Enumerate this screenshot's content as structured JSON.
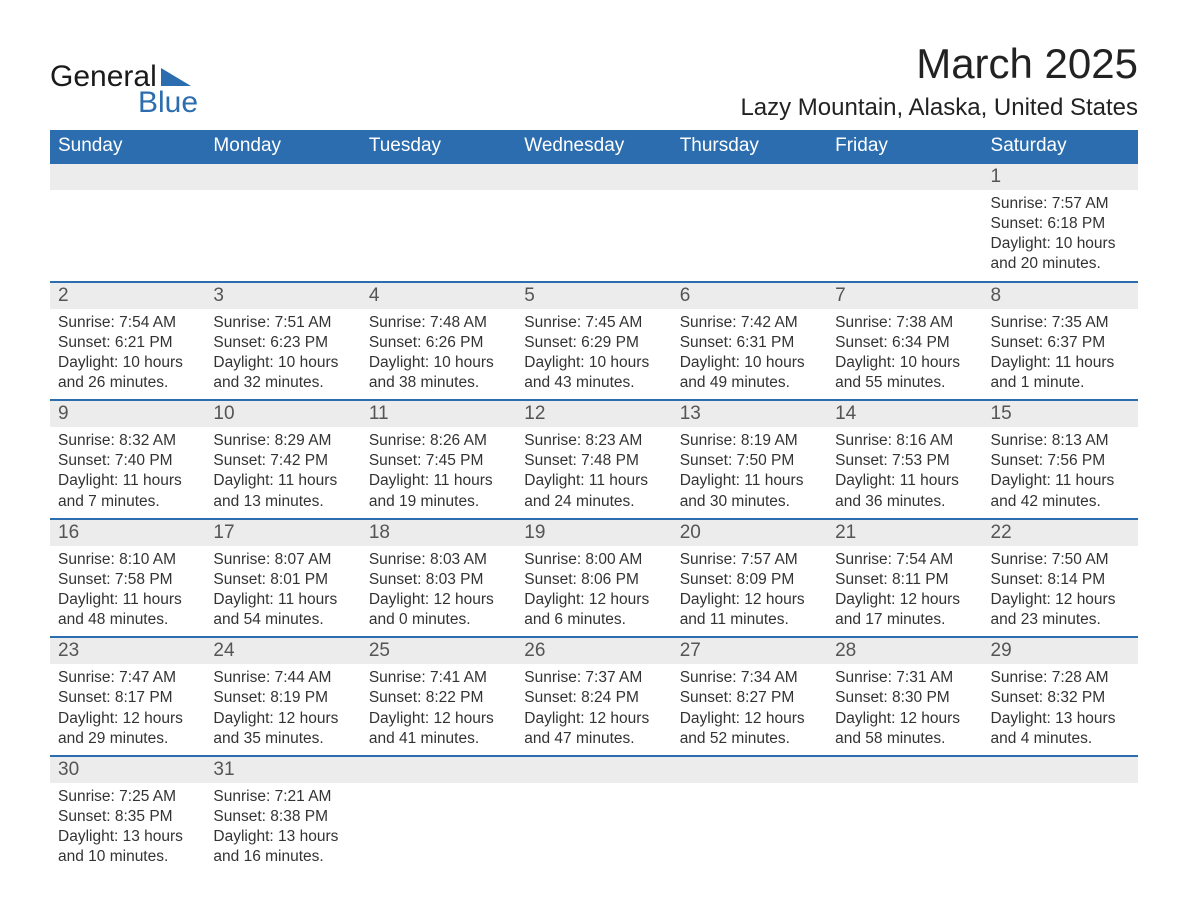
{
  "logo": {
    "word1": "General",
    "word2": "Blue",
    "triangle_color": "#2b6daf"
  },
  "title": "March 2025",
  "location": "Lazy Mountain, Alaska, United States",
  "colors": {
    "header_bg": "#2b6daf",
    "header_text": "#ffffff",
    "daynum_bg": "#ececec",
    "border": "#2b6daf",
    "text": "#333333",
    "background": "#ffffff"
  },
  "typography": {
    "title_fontsize": 42,
    "location_fontsize": 24,
    "header_fontsize": 19,
    "daynum_fontsize": 19,
    "body_fontsize": 15.5
  },
  "layout": {
    "columns": 7,
    "rows": 6,
    "start_day_index": 6
  },
  "headers": [
    "Sunday",
    "Monday",
    "Tuesday",
    "Wednesday",
    "Thursday",
    "Friday",
    "Saturday"
  ],
  "weeks": [
    [
      null,
      null,
      null,
      null,
      null,
      null,
      {
        "n": "1",
        "sr": "Sunrise: 7:57 AM",
        "ss": "Sunset: 6:18 PM",
        "d1": "Daylight: 10 hours",
        "d2": "and 20 minutes."
      }
    ],
    [
      {
        "n": "2",
        "sr": "Sunrise: 7:54 AM",
        "ss": "Sunset: 6:21 PM",
        "d1": "Daylight: 10 hours",
        "d2": "and 26 minutes."
      },
      {
        "n": "3",
        "sr": "Sunrise: 7:51 AM",
        "ss": "Sunset: 6:23 PM",
        "d1": "Daylight: 10 hours",
        "d2": "and 32 minutes."
      },
      {
        "n": "4",
        "sr": "Sunrise: 7:48 AM",
        "ss": "Sunset: 6:26 PM",
        "d1": "Daylight: 10 hours",
        "d2": "and 38 minutes."
      },
      {
        "n": "5",
        "sr": "Sunrise: 7:45 AM",
        "ss": "Sunset: 6:29 PM",
        "d1": "Daylight: 10 hours",
        "d2": "and 43 minutes."
      },
      {
        "n": "6",
        "sr": "Sunrise: 7:42 AM",
        "ss": "Sunset: 6:31 PM",
        "d1": "Daylight: 10 hours",
        "d2": "and 49 minutes."
      },
      {
        "n": "7",
        "sr": "Sunrise: 7:38 AM",
        "ss": "Sunset: 6:34 PM",
        "d1": "Daylight: 10 hours",
        "d2": "and 55 minutes."
      },
      {
        "n": "8",
        "sr": "Sunrise: 7:35 AM",
        "ss": "Sunset: 6:37 PM",
        "d1": "Daylight: 11 hours",
        "d2": "and 1 minute."
      }
    ],
    [
      {
        "n": "9",
        "sr": "Sunrise: 8:32 AM",
        "ss": "Sunset: 7:40 PM",
        "d1": "Daylight: 11 hours",
        "d2": "and 7 minutes."
      },
      {
        "n": "10",
        "sr": "Sunrise: 8:29 AM",
        "ss": "Sunset: 7:42 PM",
        "d1": "Daylight: 11 hours",
        "d2": "and 13 minutes."
      },
      {
        "n": "11",
        "sr": "Sunrise: 8:26 AM",
        "ss": "Sunset: 7:45 PM",
        "d1": "Daylight: 11 hours",
        "d2": "and 19 minutes."
      },
      {
        "n": "12",
        "sr": "Sunrise: 8:23 AM",
        "ss": "Sunset: 7:48 PM",
        "d1": "Daylight: 11 hours",
        "d2": "and 24 minutes."
      },
      {
        "n": "13",
        "sr": "Sunrise: 8:19 AM",
        "ss": "Sunset: 7:50 PM",
        "d1": "Daylight: 11 hours",
        "d2": "and 30 minutes."
      },
      {
        "n": "14",
        "sr": "Sunrise: 8:16 AM",
        "ss": "Sunset: 7:53 PM",
        "d1": "Daylight: 11 hours",
        "d2": "and 36 minutes."
      },
      {
        "n": "15",
        "sr": "Sunrise: 8:13 AM",
        "ss": "Sunset: 7:56 PM",
        "d1": "Daylight: 11 hours",
        "d2": "and 42 minutes."
      }
    ],
    [
      {
        "n": "16",
        "sr": "Sunrise: 8:10 AM",
        "ss": "Sunset: 7:58 PM",
        "d1": "Daylight: 11 hours",
        "d2": "and 48 minutes."
      },
      {
        "n": "17",
        "sr": "Sunrise: 8:07 AM",
        "ss": "Sunset: 8:01 PM",
        "d1": "Daylight: 11 hours",
        "d2": "and 54 minutes."
      },
      {
        "n": "18",
        "sr": "Sunrise: 8:03 AM",
        "ss": "Sunset: 8:03 PM",
        "d1": "Daylight: 12 hours",
        "d2": "and 0 minutes."
      },
      {
        "n": "19",
        "sr": "Sunrise: 8:00 AM",
        "ss": "Sunset: 8:06 PM",
        "d1": "Daylight: 12 hours",
        "d2": "and 6 minutes."
      },
      {
        "n": "20",
        "sr": "Sunrise: 7:57 AM",
        "ss": "Sunset: 8:09 PM",
        "d1": "Daylight: 12 hours",
        "d2": "and 11 minutes."
      },
      {
        "n": "21",
        "sr": "Sunrise: 7:54 AM",
        "ss": "Sunset: 8:11 PM",
        "d1": "Daylight: 12 hours",
        "d2": "and 17 minutes."
      },
      {
        "n": "22",
        "sr": "Sunrise: 7:50 AM",
        "ss": "Sunset: 8:14 PM",
        "d1": "Daylight: 12 hours",
        "d2": "and 23 minutes."
      }
    ],
    [
      {
        "n": "23",
        "sr": "Sunrise: 7:47 AM",
        "ss": "Sunset: 8:17 PM",
        "d1": "Daylight: 12 hours",
        "d2": "and 29 minutes."
      },
      {
        "n": "24",
        "sr": "Sunrise: 7:44 AM",
        "ss": "Sunset: 8:19 PM",
        "d1": "Daylight: 12 hours",
        "d2": "and 35 minutes."
      },
      {
        "n": "25",
        "sr": "Sunrise: 7:41 AM",
        "ss": "Sunset: 8:22 PM",
        "d1": "Daylight: 12 hours",
        "d2": "and 41 minutes."
      },
      {
        "n": "26",
        "sr": "Sunrise: 7:37 AM",
        "ss": "Sunset: 8:24 PM",
        "d1": "Daylight: 12 hours",
        "d2": "and 47 minutes."
      },
      {
        "n": "27",
        "sr": "Sunrise: 7:34 AM",
        "ss": "Sunset: 8:27 PM",
        "d1": "Daylight: 12 hours",
        "d2": "and 52 minutes."
      },
      {
        "n": "28",
        "sr": "Sunrise: 7:31 AM",
        "ss": "Sunset: 8:30 PM",
        "d1": "Daylight: 12 hours",
        "d2": "and 58 minutes."
      },
      {
        "n": "29",
        "sr": "Sunrise: 7:28 AM",
        "ss": "Sunset: 8:32 PM",
        "d1": "Daylight: 13 hours",
        "d2": "and 4 minutes."
      }
    ],
    [
      {
        "n": "30",
        "sr": "Sunrise: 7:25 AM",
        "ss": "Sunset: 8:35 PM",
        "d1": "Daylight: 13 hours",
        "d2": "and 10 minutes."
      },
      {
        "n": "31",
        "sr": "Sunrise: 7:21 AM",
        "ss": "Sunset: 8:38 PM",
        "d1": "Daylight: 13 hours",
        "d2": "and 16 minutes."
      },
      null,
      null,
      null,
      null,
      null
    ]
  ]
}
